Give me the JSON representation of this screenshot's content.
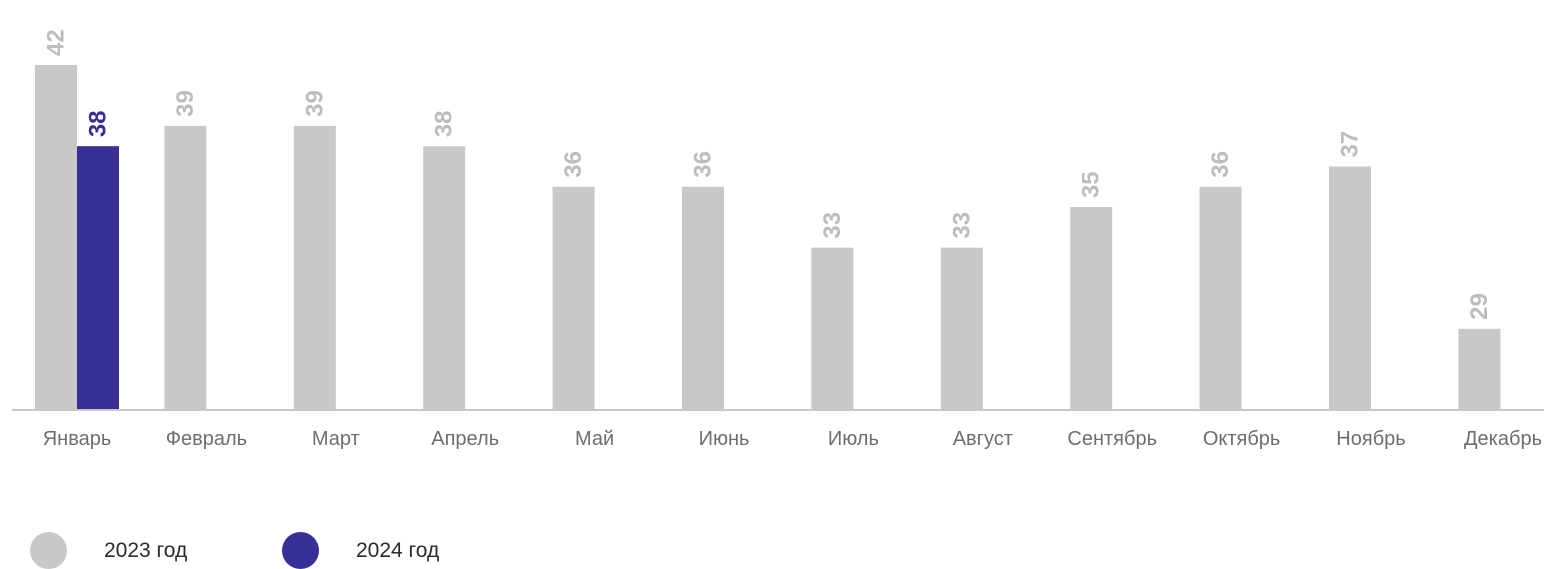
{
  "chart_data": {
    "type": "bar",
    "categories": [
      "Январь",
      "Февраль",
      "Март",
      "Апрель",
      "Май",
      "Июнь",
      "Июль",
      "Август",
      "Сентябрь",
      "Октябрь",
      "Ноябрь",
      "Декабрь"
    ],
    "series": [
      {
        "name": "2023 год",
        "color": "#c8c8c8",
        "values": [
          42,
          39,
          39,
          38,
          36,
          36,
          33,
          33,
          35,
          36,
          37,
          29
        ]
      },
      {
        "name": "2024 год",
        "color": "#372f96",
        "values": [
          38,
          null,
          null,
          null,
          null,
          null,
          null,
          null,
          null,
          null,
          null,
          null
        ]
      }
    ],
    "title": "",
    "xlabel": "",
    "ylabel": "",
    "ylim": [
      25,
      42
    ],
    "grid": false,
    "legend_position": "bottom-left",
    "data_labels": "vertical, above bars"
  }
}
